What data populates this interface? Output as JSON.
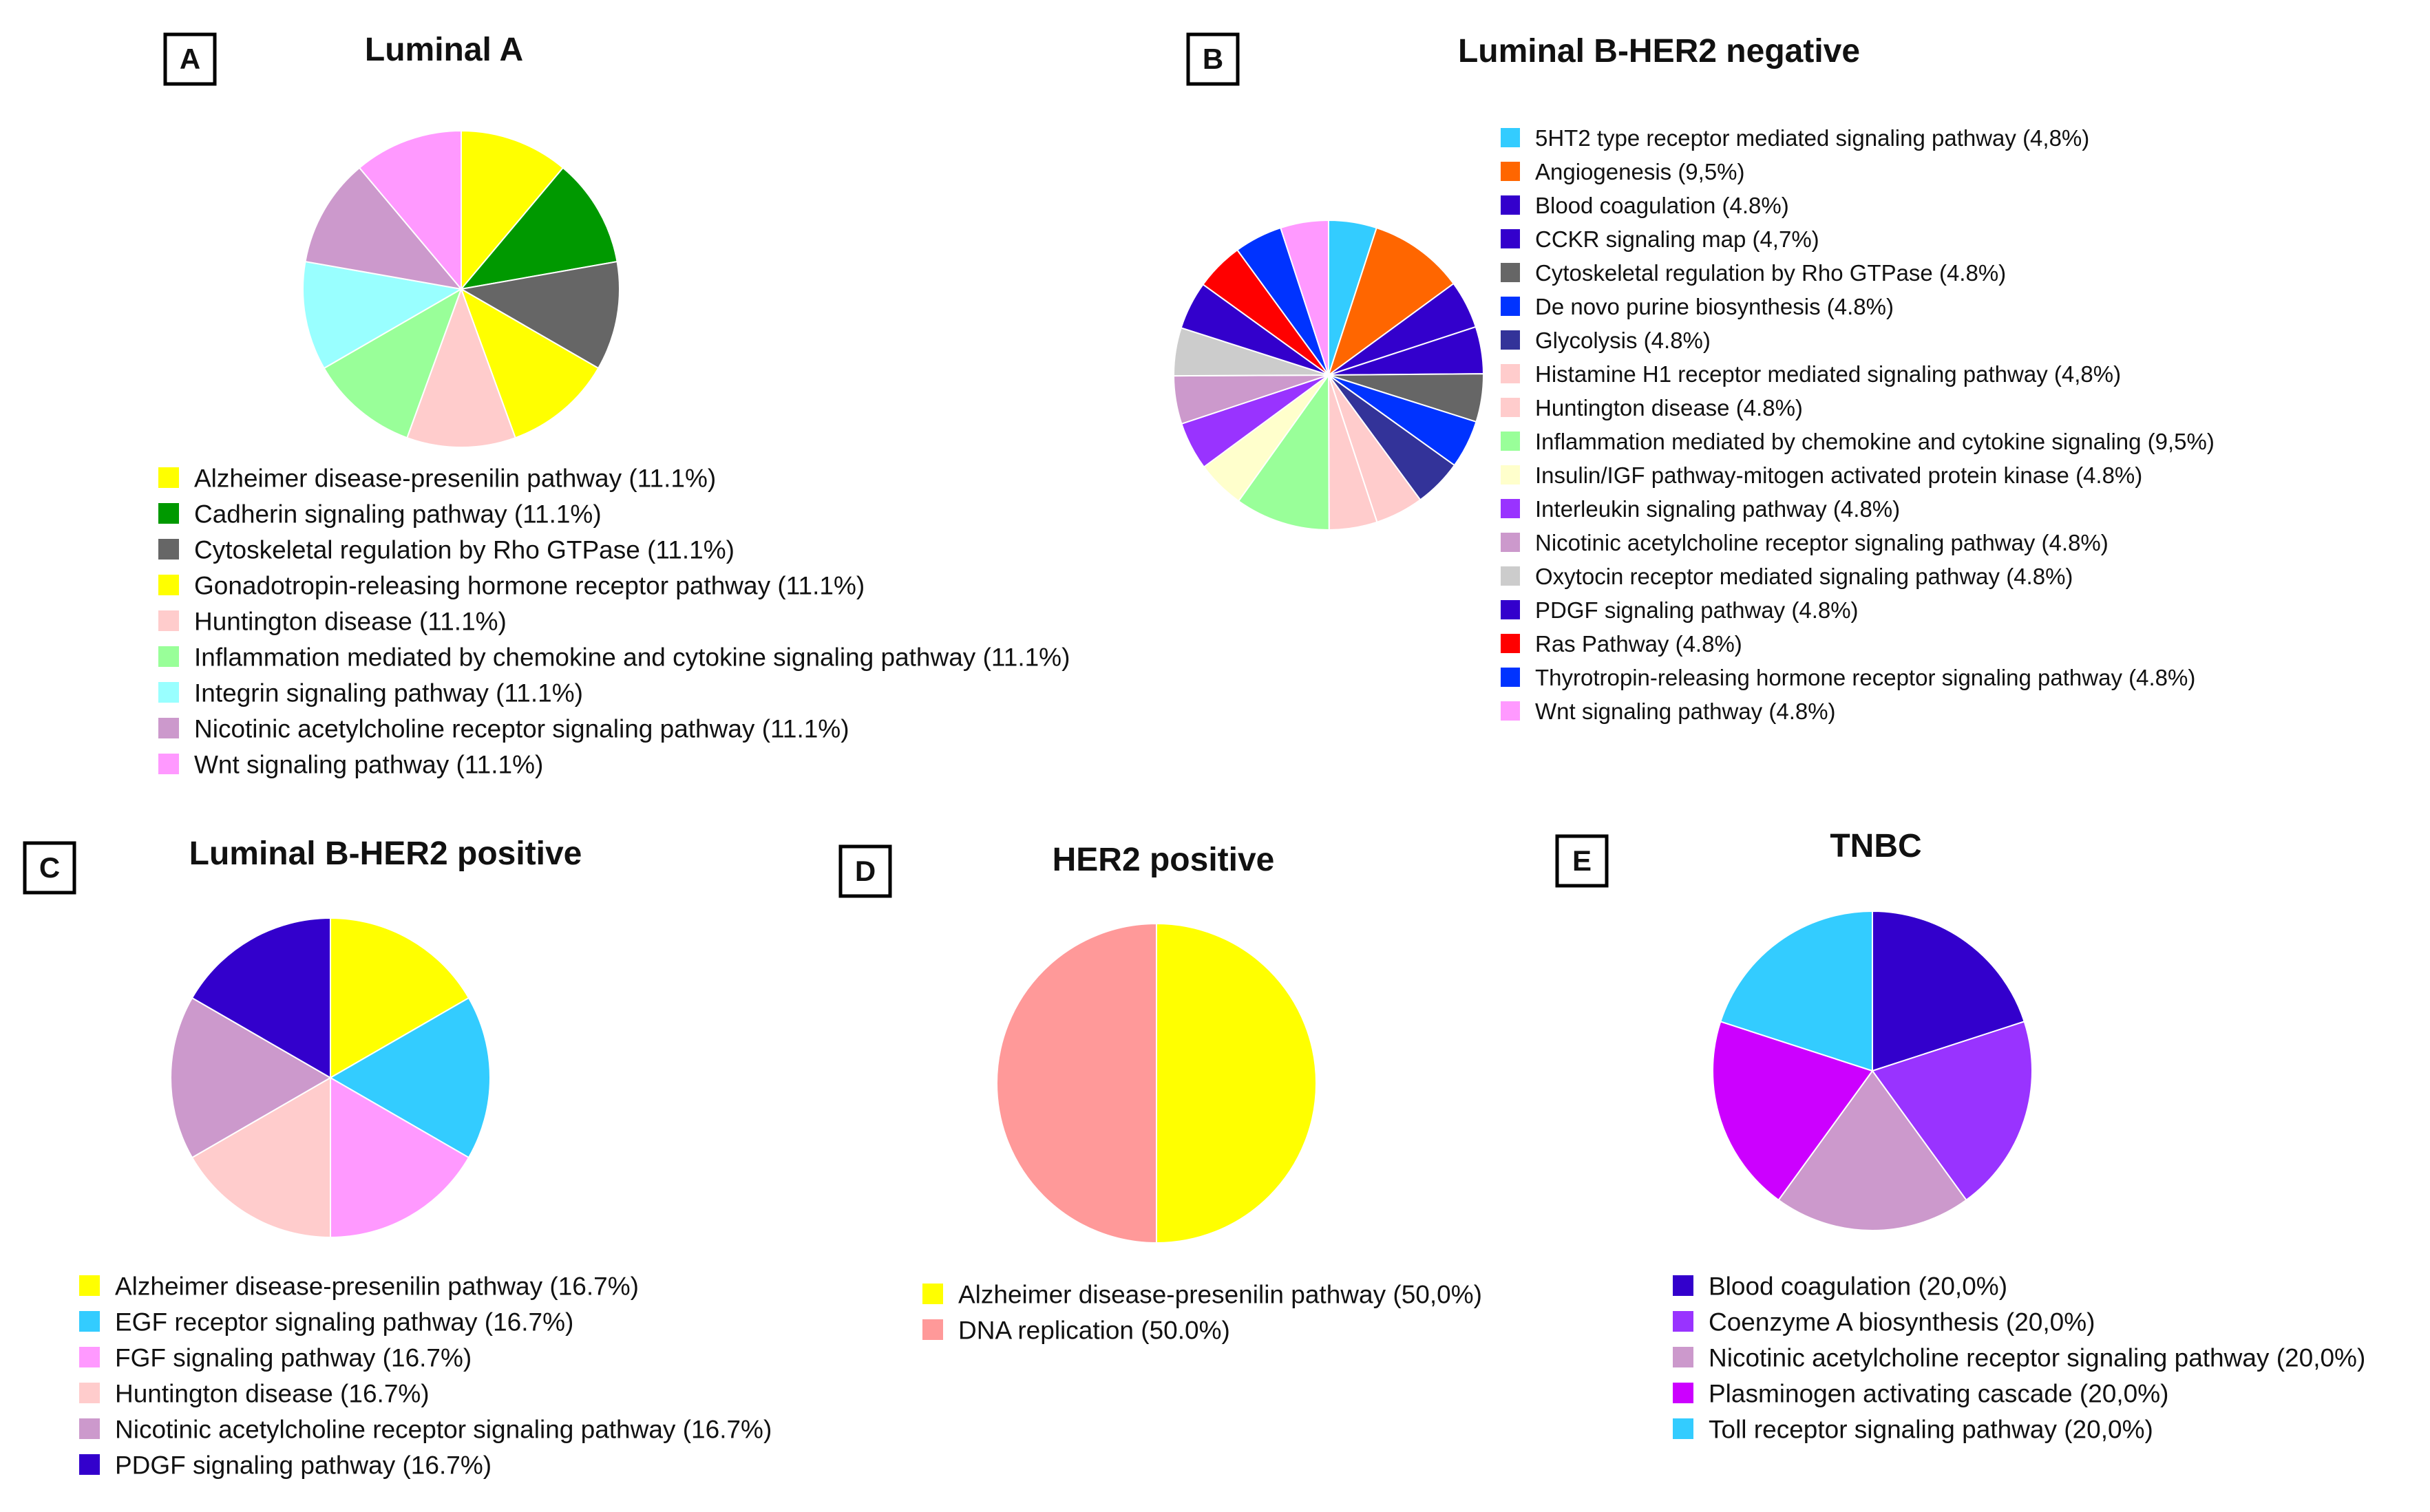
{
  "figure_panels": [
    {
      "panel_letter": "A",
      "title": "Luminal A",
      "chart_type": "pie",
      "slices": [
        {
          "label": "Alzheimer disease-presenilin pathway (11.1%)",
          "value": 11.1,
          "color": "#FFFF00"
        },
        {
          "label": "Cadherin signaling pathway (11.1%)",
          "value": 11.1,
          "color": "#009900"
        },
        {
          "label": "Cytoskeletal regulation by Rho GTPase (11.1%)",
          "value": 11.1,
          "color": "#666666"
        },
        {
          "label": "Gonadotropin-releasing hormone receptor pathway (11.1%)",
          "value": 11.1,
          "color": "#FFFF00"
        },
        {
          "label": "Huntington disease (11.1%)",
          "value": 11.1,
          "color": "#FFCCCC"
        },
        {
          "label": "Inflammation mediated by chemokine and cytokine signaling pathway (11.1%)",
          "value": 11.1,
          "color": "#99FF99"
        },
        {
          "label": "Integrin signaling pathway (11.1%)",
          "value": 11.1,
          "color": "#99FFFF"
        },
        {
          "label": "Nicotinic acetylcholine receptor signaling pathway (11.1%)",
          "value": 11.1,
          "color": "#CC99CC"
        },
        {
          "label": "Wnt signaling pathway (11.1%)",
          "value": 11.1,
          "color": "#FF99FF"
        }
      ]
    },
    {
      "panel_letter": "B",
      "title": "Luminal B-HER2 negative",
      "chart_type": "pie",
      "slices": [
        {
          "label": "5HT2 type receptor mediated signaling pathway (4,8%)",
          "value": 4.8,
          "color": "#33CCFF"
        },
        {
          "label": "Angiogenesis (9,5%)",
          "value": 9.5,
          "color": "#FF6600"
        },
        {
          "label": "Blood coagulation (4.8%)",
          "value": 4.8,
          "color": "#3300CC"
        },
        {
          "label": "CCKR signaling map (4,7%)",
          "value": 4.7,
          "color": "#3300CC"
        },
        {
          "label": "Cytoskeletal regulation by Rho GTPase (4.8%)",
          "value": 4.8,
          "color": "#666666"
        },
        {
          "label": "De novo purine biosynthesis (4.8%)",
          "value": 4.8,
          "color": "#0033FF"
        },
        {
          "label": "Glycolysis (4.8%)",
          "value": 4.8,
          "color": "#333399"
        },
        {
          "label": "Histamine H1 receptor mediated signaling pathway (4,8%)",
          "value": 4.8,
          "color": "#FFCCCC"
        },
        {
          "label": "Huntington disease (4.8%)",
          "value": 4.8,
          "color": "#FFCCCC"
        },
        {
          "label": "Inflammation mediated by chemokine and cytokine signaling (9,5%)",
          "value": 9.5,
          "color": "#99FF99"
        },
        {
          "label": "Insulin/IGF pathway-mitogen activated protein kinase (4.8%)",
          "value": 4.8,
          "color": "#FFFFCC"
        },
        {
          "label": "Interleukin signaling pathway (4.8%)",
          "value": 4.8,
          "color": "#9933FF"
        },
        {
          "label": "Nicotinic acetylcholine receptor signaling pathway (4.8%)",
          "value": 4.8,
          "color": "#CC99CC"
        },
        {
          "label": "Oxytocin receptor mediated signaling pathway (4.8%)",
          "value": 4.8,
          "color": "#CCCCCC"
        },
        {
          "label": "PDGF signaling pathway (4.8%)",
          "value": 4.8,
          "color": "#3300CC"
        },
        {
          "label": "Ras Pathway (4.8%)",
          "value": 4.8,
          "color": "#FF0000"
        },
        {
          "label": "Thyrotropin-releasing hormone receptor signaling pathway (4.8%)",
          "value": 4.8,
          "color": "#0033FF"
        },
        {
          "label": "Wnt signaling pathway (4.8%)",
          "value": 4.8,
          "color": "#FF99FF"
        }
      ]
    },
    {
      "panel_letter": "C",
      "title": "Luminal B-HER2 positive",
      "chart_type": "pie",
      "slices": [
        {
          "label": "Alzheimer disease-presenilin pathway (16.7%)",
          "value": 16.7,
          "color": "#FFFF00"
        },
        {
          "label": "EGF receptor signaling pathway (16.7%)",
          "value": 16.7,
          "color": "#33CCFF"
        },
        {
          "label": "FGF signaling pathway (16.7%)",
          "value": 16.7,
          "color": "#FF99FF"
        },
        {
          "label": "Huntington disease (16.7%)",
          "value": 16.7,
          "color": "#FFCCCC"
        },
        {
          "label": "Nicotinic acetylcholine receptor signaling pathway (16.7%)",
          "value": 16.7,
          "color": "#CC99CC"
        },
        {
          "label": "PDGF signaling pathway (16.7%)",
          "value": 16.7,
          "color": "#3300CC"
        }
      ]
    },
    {
      "panel_letter": "D",
      "title": "HER2 positive",
      "chart_type": "pie",
      "slices": [
        {
          "label": "Alzheimer disease-presenilin pathway (50,0%)",
          "value": 50.0,
          "color": "#FFFF00"
        },
        {
          "label": "DNA replication (50.0%)",
          "value": 50.0,
          "color": "#FF9999"
        }
      ]
    },
    {
      "panel_letter": "E",
      "title": "TNBC",
      "chart_type": "pie",
      "slices": [
        {
          "label": "Blood coagulation (20,0%)",
          "value": 20.0,
          "color": "#3300CC"
        },
        {
          "label": "Coenzyme A biosynthesis (20,0%)",
          "value": 20.0,
          "color": "#9933FF"
        },
        {
          "label": "Nicotinic acetylcholine receptor signaling pathway (20,0%)",
          "value": 20.0,
          "color": "#CC99CC"
        },
        {
          "label": "Plasminogen activating cascade (20,0%)",
          "value": 20.0,
          "color": "#CC00FF"
        },
        {
          "label": "Toll receptor signaling pathway (20,0%)",
          "value": 20.0,
          "color": "#33CCFF"
        }
      ]
    }
  ],
  "chart_data": [
    {
      "type": "pie",
      "title": "Luminal A",
      "categories": [
        "Alzheimer disease-presenilin pathway",
        "Cadherin signaling pathway",
        "Cytoskeletal regulation by Rho GTPase",
        "Gonadotropin-releasing hormone receptor pathway",
        "Huntington disease",
        "Inflammation mediated by chemokine and cytokine signaling pathway",
        "Integrin signaling pathway",
        "Nicotinic acetylcholine receptor signaling pathway",
        "Wnt signaling pathway"
      ],
      "values": [
        11.1,
        11.1,
        11.1,
        11.1,
        11.1,
        11.1,
        11.1,
        11.1,
        11.1
      ],
      "legend": "below"
    },
    {
      "type": "pie",
      "title": "Luminal B-HER2 negative",
      "categories": [
        "5HT2 type receptor mediated signaling pathway",
        "Angiogenesis",
        "Blood coagulation",
        "CCKR signaling map",
        "Cytoskeletal regulation by Rho GTPase",
        "De novo purine biosynthesis",
        "Glycolysis",
        "Histamine H1 receptor mediated signaling pathway",
        "Huntington disease",
        "Inflammation mediated by chemokine and cytokine signaling",
        "Insulin/IGF pathway-mitogen activated protein kinase",
        "Interleukin signaling pathway",
        "Nicotinic acetylcholine receptor signaling pathway",
        "Oxytocin receptor mediated signaling pathway",
        "PDGF signaling pathway",
        "Ras Pathway",
        "Thyrotropin-releasing hormone receptor signaling pathway",
        "Wnt signaling pathway"
      ],
      "values": [
        4.8,
        9.5,
        4.8,
        4.7,
        4.8,
        4.8,
        4.8,
        4.8,
        4.8,
        9.5,
        4.8,
        4.8,
        4.8,
        4.8,
        4.8,
        4.8,
        4.8,
        4.8
      ],
      "legend": "right"
    },
    {
      "type": "pie",
      "title": "Luminal B-HER2 positive",
      "categories": [
        "Alzheimer disease-presenilin pathway",
        "EGF receptor signaling pathway",
        "FGF signaling pathway",
        "Huntington disease",
        "Nicotinic acetylcholine receptor signaling pathway",
        "PDGF signaling pathway"
      ],
      "values": [
        16.7,
        16.7,
        16.7,
        16.7,
        16.7,
        16.7
      ],
      "legend": "below"
    },
    {
      "type": "pie",
      "title": "HER2 positive",
      "categories": [
        "Alzheimer disease-presenilin pathway",
        "DNA replication"
      ],
      "values": [
        50.0,
        50.0
      ],
      "legend": "below"
    },
    {
      "type": "pie",
      "title": "TNBC",
      "categories": [
        "Blood coagulation",
        "Coenzyme A biosynthesis",
        "Nicotinic acetylcholine receptor signaling pathway",
        "Plasminogen activating cascade",
        "Toll receptor signaling pathway"
      ],
      "values": [
        20.0,
        20.0,
        20.0,
        20.0,
        20.0
      ],
      "legend": "below"
    }
  ]
}
